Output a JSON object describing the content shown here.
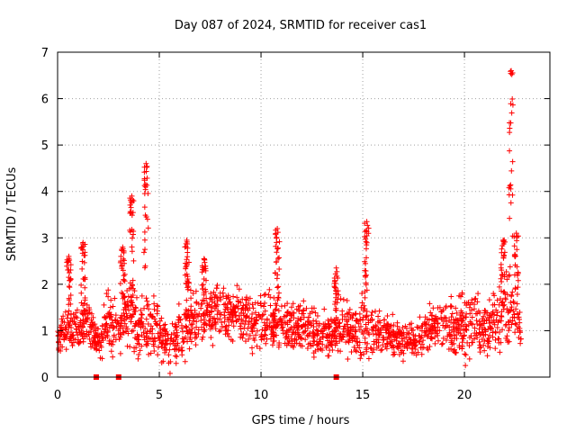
{
  "chart_data": {
    "type": "scatter",
    "title": "Day 087 of 2024, SRMTID for receiver cas1",
    "xlabel": "GPS time / hours",
    "ylabel": "SRMTID / TECUs",
    "xlim": [
      0,
      24.2
    ],
    "ylim": [
      0,
      7
    ],
    "xticks": [
      0,
      5,
      10,
      15,
      20
    ],
    "yticks": [
      0,
      1,
      2,
      3,
      4,
      5,
      6,
      7
    ],
    "grid": true,
    "marker": "plus",
    "color": "#ff0000",
    "series": [
      {
        "name": "SRMTID",
        "envelope": {
          "x": [
            0,
            0.5,
            1,
            1.5,
            2,
            2.5,
            3,
            3.5,
            4,
            4.5,
            5,
            5.5,
            6,
            6.5,
            7,
            7.5,
            8,
            8.5,
            9,
            9.5,
            10,
            10.5,
            11,
            11.5,
            12,
            12.5,
            13,
            13.5,
            14,
            14.5,
            15,
            15.5,
            16,
            16.5,
            17,
            17.5,
            18,
            18.5,
            19,
            19.5,
            20,
            20.5,
            21,
            21.5,
            22,
            22.5,
            22.8
          ],
          "low": [
            0.4,
            0.5,
            0.5,
            0.4,
            0.3,
            0.5,
            0.3,
            0.5,
            0.3,
            0.4,
            0.3,
            0.05,
            0.1,
            0.3,
            0.5,
            0.6,
            0.7,
            0.6,
            0.6,
            0.5,
            0.4,
            0.4,
            0.5,
            0.4,
            0.4,
            0.3,
            0.3,
            0.3,
            0.3,
            0.3,
            0.2,
            0.3,
            0.3,
            0.3,
            0.2,
            0.3,
            0.4,
            0.5,
            0.4,
            0.3,
            0.1,
            0.3,
            0.3,
            0.3,
            0.5,
            0.5,
            0.5
          ],
          "high": [
            1.3,
            1.6,
            1.8,
            1.9,
            1.2,
            2.1,
            2.0,
            2.3,
            1.8,
            2.0,
            1.7,
            1.2,
            1.8,
            2.0,
            2.0,
            2.1,
            2.2,
            2.1,
            2.1,
            1.9,
            2.0,
            2.0,
            1.8,
            1.7,
            1.8,
            1.7,
            1.6,
            1.6,
            1.8,
            1.7,
            1.9,
            1.6,
            1.6,
            1.4,
            1.4,
            1.3,
            1.4,
            1.7,
            1.9,
            1.8,
            1.9,
            2.1,
            2.0,
            2.0,
            2.5,
            2.0,
            1.4
          ]
        },
        "spikes": [
          {
            "x": 0.55,
            "peak": 2.6
          },
          {
            "x": 1.25,
            "peak": 2.9
          },
          {
            "x": 3.2,
            "peak": 2.8
          },
          {
            "x": 3.65,
            "peak": 3.9
          },
          {
            "x": 4.35,
            "peak": 4.6
          },
          {
            "x": 6.35,
            "peak": 2.95
          },
          {
            "x": 7.2,
            "peak": 2.55
          },
          {
            "x": 10.8,
            "peak": 3.2
          },
          {
            "x": 13.7,
            "peak": 2.35
          },
          {
            "x": 15.2,
            "peak": 3.35
          },
          {
            "x": 21.9,
            "peak": 2.95
          },
          {
            "x": 22.3,
            "peak": 6.6
          },
          {
            "x": 22.55,
            "peak": 3.1
          }
        ],
        "zero_values": [
          {
            "x": 1.9,
            "y": 0
          },
          {
            "x": 3.0,
            "y": 0
          },
          {
            "x": 13.7,
            "y": 0
          }
        ]
      }
    ]
  }
}
